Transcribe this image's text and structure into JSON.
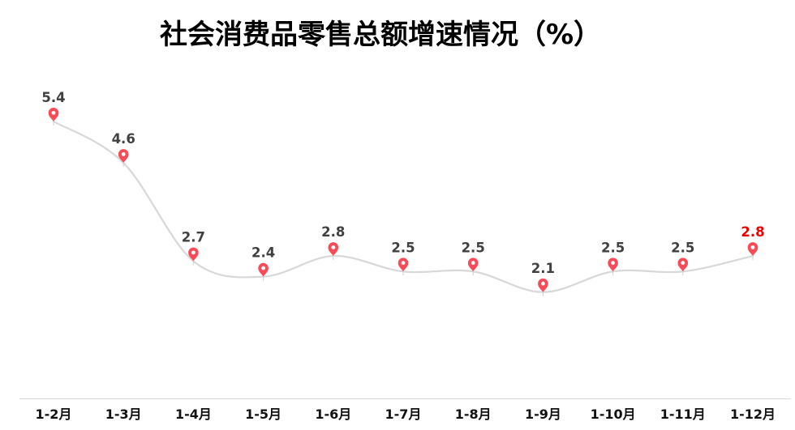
{
  "chart_data": {
    "type": "line",
    "title": "社会消费品零售总额增速情况（%）",
    "categories": [
      "1-2月",
      "1-3月",
      "1-4月",
      "1-5月",
      "1-6月",
      "1-7月",
      "1-8月",
      "1-9月",
      "1-10月",
      "1-11月",
      "1-12月"
    ],
    "series": [
      {
        "name": "社会消费品零售总额增速",
        "values": [
          5.4,
          4.6,
          2.7,
          2.4,
          2.8,
          2.5,
          2.5,
          2.1,
          2.5,
          2.5,
          2.8
        ]
      }
    ],
    "data_labels": [
      "5.4",
      "4.6",
      "2.7",
      "2.4",
      "2.8",
      "2.5",
      "2.5",
      "2.1",
      "2.5",
      "2.5",
      "2.8"
    ],
    "highlight_last_label": true,
    "xlabel": "",
    "ylabel": "",
    "ylim": [
      0,
      6
    ],
    "grid": false,
    "legend": false,
    "marker": "map-pin",
    "smooth": true
  },
  "colors": {
    "background": "#ffffff",
    "title": "#000000",
    "line": "#d8d8d8",
    "pin": "#f84b57",
    "pin_hole": "#ffffff",
    "value_label": "#404040",
    "value_label_highlight": "#ee0000",
    "axis_line": "#d9d9d9",
    "point_tick": "#d0d0d0",
    "category_label": "#111111"
  }
}
